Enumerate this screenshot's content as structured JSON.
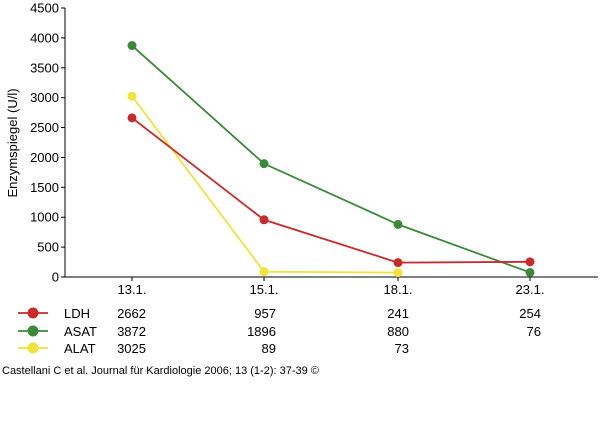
{
  "chart_data": {
    "type": "line",
    "title": "",
    "xlabel": "",
    "ylabel": "Enzymspiegel (U/l)",
    "ylim": [
      0,
      4500
    ],
    "yticks": [
      0,
      500,
      1000,
      1500,
      2000,
      2500,
      3000,
      3500,
      4000,
      4500
    ],
    "grid": false,
    "categories": [
      "13.1.",
      "15.1.",
      "18.1.",
      "23.1."
    ],
    "series": [
      {
        "name": "LDH",
        "color": "#cc2a2a",
        "values": [
          2662,
          957,
          241,
          254
        ],
        "table_values": [
          "2662",
          "957",
          "241",
          "254"
        ]
      },
      {
        "name": "ASAT",
        "color": "#3a8a3a",
        "values": [
          3872,
          1896,
          880,
          76
        ],
        "table_values": [
          "3872",
          "1896",
          "880",
          "76"
        ]
      },
      {
        "name": "ALAT",
        "color": "#f2e33a",
        "values": [
          3025,
          89,
          73,
          null
        ],
        "table_values": [
          "3025",
          "89",
          "73",
          ""
        ]
      }
    ]
  },
  "citation": "Castellani C et al. Journal für Kardiologie 2006; 13 (1-2): 37-39 ©"
}
